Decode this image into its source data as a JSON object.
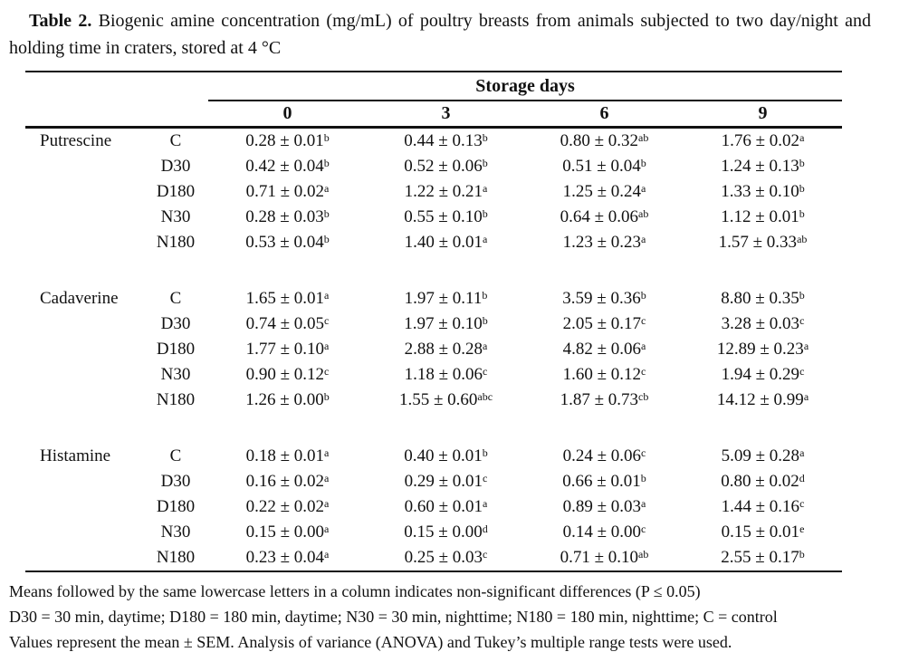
{
  "title": {
    "label": "Table 2.",
    "text": " Biogenic amine concentration (mg/mL) of poultry breasts from animals subjected to two day/night and holding time in craters, stored at 4 °C"
  },
  "table": {
    "storage_header": "Storage days",
    "day_columns": [
      "0",
      "3",
      "6",
      "9"
    ],
    "groups": [
      {
        "amine": "Putrescine",
        "rows": [
          {
            "treatment": "C",
            "cells": [
              {
                "v": "0.28 ± 0.01",
                "s": "b"
              },
              {
                "v": "0.44 ± 0.13",
                "s": "b"
              },
              {
                "v": "0.80 ± 0.32",
                "s": "ab"
              },
              {
                "v": "1.76 ± 0.02",
                "s": "a"
              }
            ]
          },
          {
            "treatment": "D30",
            "cells": [
              {
                "v": "0.42 ± 0.04",
                "s": "b"
              },
              {
                "v": "0.52 ± 0.06",
                "s": "b"
              },
              {
                "v": "0.51 ± 0.04",
                "s": "b"
              },
              {
                "v": "1.24 ± 0.13",
                "s": "b"
              }
            ]
          },
          {
            "treatment": "D180",
            "cells": [
              {
                "v": "0.71 ± 0.02",
                "s": "a"
              },
              {
                "v": "1.22 ± 0.21",
                "s": "a"
              },
              {
                "v": "1.25 ± 0.24",
                "s": "a"
              },
              {
                "v": "1.33 ± 0.10",
                "s": "b"
              }
            ]
          },
          {
            "treatment": "N30",
            "cells": [
              {
                "v": "0.28 ± 0.03",
                "s": "b"
              },
              {
                "v": "0.55 ± 0.10",
                "s": "b"
              },
              {
                "v": "0.64 ± 0.06",
                "s": "ab"
              },
              {
                "v": "1.12 ± 0.01",
                "s": "b"
              }
            ]
          },
          {
            "treatment": "N180",
            "cells": [
              {
                "v": "0.53 ± 0.04",
                "s": "b"
              },
              {
                "v": "1.40 ± 0.01",
                "s": "a"
              },
              {
                "v": "1.23 ± 0.23",
                "s": "a"
              },
              {
                "v": "1.57 ± 0.33",
                "s": "ab"
              }
            ]
          }
        ]
      },
      {
        "amine": "Cadaverine",
        "rows": [
          {
            "treatment": "C",
            "cells": [
              {
                "v": "1.65 ± 0.01",
                "s": "a"
              },
              {
                "v": "1.97 ± 0.11",
                "s": "b"
              },
              {
                "v": "3.59 ± 0.36",
                "s": "b"
              },
              {
                "v": "8.80 ± 0.35",
                "s": "b"
              }
            ]
          },
          {
            "treatment": "D30",
            "cells": [
              {
                "v": "0.74 ± 0.05",
                "s": "c"
              },
              {
                "v": "1.97 ± 0.10",
                "s": "b"
              },
              {
                "v": "2.05 ± 0.17",
                "s": "c"
              },
              {
                "v": "3.28 ± 0.03",
                "s": "c"
              }
            ]
          },
          {
            "treatment": "D180",
            "cells": [
              {
                "v": "1.77 ± 0.10",
                "s": "a"
              },
              {
                "v": "2.88 ± 0.28",
                "s": "a"
              },
              {
                "v": "4.82 ± 0.06",
                "s": "a"
              },
              {
                "v": "12.89 ± 0.23",
                "s": "a"
              }
            ]
          },
          {
            "treatment": "N30",
            "cells": [
              {
                "v": "0.90 ± 0.12",
                "s": "c"
              },
              {
                "v": "1.18 ± 0.06",
                "s": "c"
              },
              {
                "v": "1.60 ± 0.12",
                "s": "c"
              },
              {
                "v": "1.94 ± 0.29",
                "s": "c"
              }
            ]
          },
          {
            "treatment": "N180",
            "cells": [
              {
                "v": "1.26 ± 0.00",
                "s": "b"
              },
              {
                "v": "1.55 ± 0.60",
                "s": "abc"
              },
              {
                "v": "1.87 ± 0.73",
                "s": "cb"
              },
              {
                "v": "14.12 ± 0.99",
                "s": "a"
              }
            ]
          }
        ]
      },
      {
        "amine": "Histamine",
        "rows": [
          {
            "treatment": "C",
            "cells": [
              {
                "v": "0.18 ± 0.01",
                "s": "a"
              },
              {
                "v": "0.40 ± 0.01",
                "s": "b"
              },
              {
                "v": "0.24 ± 0.06",
                "s": "c"
              },
              {
                "v": "5.09 ± 0.28",
                "s": "a"
              }
            ]
          },
          {
            "treatment": "D30",
            "cells": [
              {
                "v": "0.16 ± 0.02",
                "s": "a"
              },
              {
                "v": "0.29 ± 0.01",
                "s": "c"
              },
              {
                "v": "0.66 ± 0.01",
                "s": "b"
              },
              {
                "v": "0.80 ± 0.02",
                "s": "d"
              }
            ]
          },
          {
            "treatment": "D180",
            "cells": [
              {
                "v": "0.22 ± 0.02",
                "s": "a"
              },
              {
                "v": "0.60 ± 0.01",
                "s": "a"
              },
              {
                "v": "0.89 ± 0.03",
                "s": "a"
              },
              {
                "v": "1.44 ± 0.16",
                "s": "c"
              }
            ]
          },
          {
            "treatment": "N30",
            "cells": [
              {
                "v": "0.15 ± 0.00",
                "s": "a"
              },
              {
                "v": "0.15 ± 0.00",
                "s": "d"
              },
              {
                "v": "0.14 ± 0.00",
                "s": "c"
              },
              {
                "v": "0.15 ± 0.01",
                "s": "e"
              }
            ]
          },
          {
            "treatment": "N180",
            "cells": [
              {
                "v": "0.23 ± 0.04",
                "s": "a"
              },
              {
                "v": "0.25 ± 0.03",
                "s": "c"
              },
              {
                "v": "0.71 ± 0.10",
                "s": "ab"
              },
              {
                "v": "2.55 ± 0.17",
                "s": "b"
              }
            ]
          }
        ]
      }
    ]
  },
  "footnotes": [
    "Means followed by the same lowercase letters in a column indicates non-significant differences (P ≤ 0.05)",
    "D30 = 30 min, daytime; D180 = 180 min, daytime; N30 = 30 min, nighttime; N180 = 180 min, nighttime; C = control",
    "Values represent the mean ± SEM. Analysis of variance (ANOVA) and Tukey’s multiple range tests were used."
  ]
}
